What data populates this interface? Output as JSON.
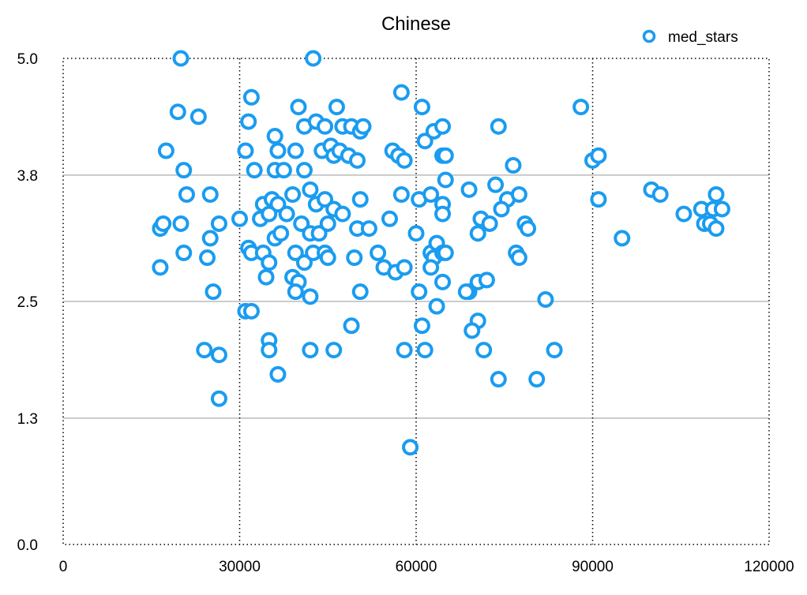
{
  "chart_data": {
    "type": "scatter",
    "title": "Chinese",
    "xlabel": "",
    "ylabel": "",
    "xlim": [
      0,
      120000
    ],
    "ylim": [
      0,
      5
    ],
    "x_ticks": [
      "0",
      "30000",
      "60000",
      "90000",
      "120000"
    ],
    "y_ticks": [
      "0.0",
      "1.3",
      "2.5",
      "3.8",
      "5.0"
    ],
    "grid": {
      "x": "dotted",
      "y": "solid"
    },
    "legend_position": "top-right",
    "colors": {
      "series": "#1a9cf0",
      "grid_y": "#bbbbbb",
      "grid_x": "#000000"
    },
    "series": [
      {
        "name": "med_stars",
        "points": [
          [
            20000,
            5.0
          ],
          [
            42500,
            5.0
          ],
          [
            19500,
            4.45
          ],
          [
            23000,
            4.4
          ],
          [
            32000,
            4.6
          ],
          [
            31500,
            4.35
          ],
          [
            40000,
            4.5
          ],
          [
            41000,
            4.3
          ],
          [
            43000,
            4.35
          ],
          [
            44500,
            4.3
          ],
          [
            46500,
            4.5
          ],
          [
            47500,
            4.3
          ],
          [
            49000,
            4.3
          ],
          [
            50500,
            4.25
          ],
          [
            51000,
            4.3
          ],
          [
            57500,
            4.65
          ],
          [
            61000,
            4.5
          ],
          [
            61500,
            4.15
          ],
          [
            63000,
            4.25
          ],
          [
            64500,
            4.3
          ],
          [
            74000,
            4.3
          ],
          [
            88000,
            4.5
          ],
          [
            17500,
            4.05
          ],
          [
            20500,
            3.85
          ],
          [
            31000,
            4.05
          ],
          [
            32500,
            3.85
          ],
          [
            36000,
            4.2
          ],
          [
            36500,
            4.05
          ],
          [
            36000,
            3.85
          ],
          [
            37500,
            3.85
          ],
          [
            39500,
            4.05
          ],
          [
            41000,
            3.85
          ],
          [
            44000,
            4.05
          ],
          [
            45500,
            4.1
          ],
          [
            46000,
            4.0
          ],
          [
            47000,
            4.05
          ],
          [
            48500,
            4.0
          ],
          [
            50000,
            3.95
          ],
          [
            56000,
            4.05
          ],
          [
            57000,
            4.0
          ],
          [
            58000,
            3.95
          ],
          [
            64500,
            4.0
          ],
          [
            65000,
            4.0
          ],
          [
            76500,
            3.9
          ],
          [
            90000,
            3.95
          ],
          [
            91000,
            4.0
          ],
          [
            21000,
            3.6
          ],
          [
            25000,
            3.6
          ],
          [
            34000,
            3.5
          ],
          [
            35500,
            3.55
          ],
          [
            36500,
            3.5
          ],
          [
            39000,
            3.6
          ],
          [
            42000,
            3.65
          ],
          [
            43000,
            3.5
          ],
          [
            44500,
            3.55
          ],
          [
            46000,
            3.45
          ],
          [
            50500,
            3.55
          ],
          [
            57500,
            3.6
          ],
          [
            60500,
            3.55
          ],
          [
            62500,
            3.6
          ],
          [
            64500,
            3.5
          ],
          [
            65000,
            3.75
          ],
          [
            69000,
            3.65
          ],
          [
            73500,
            3.7
          ],
          [
            75500,
            3.55
          ],
          [
            77500,
            3.6
          ],
          [
            91000,
            3.55
          ],
          [
            100000,
            3.65
          ],
          [
            101500,
            3.6
          ],
          [
            105500,
            3.4
          ],
          [
            108500,
            3.45
          ],
          [
            110500,
            3.45
          ],
          [
            111000,
            3.6
          ],
          [
            112000,
            3.45
          ],
          [
            16500,
            3.25
          ],
          [
            17000,
            3.3
          ],
          [
            20000,
            3.3
          ],
          [
            25000,
            3.15
          ],
          [
            26500,
            3.3
          ],
          [
            30000,
            3.35
          ],
          [
            33500,
            3.35
          ],
          [
            35000,
            3.4
          ],
          [
            36000,
            3.15
          ],
          [
            37000,
            3.2
          ],
          [
            38000,
            3.4
          ],
          [
            40500,
            3.3
          ],
          [
            42000,
            3.2
          ],
          [
            43500,
            3.2
          ],
          [
            45000,
            3.3
          ],
          [
            47500,
            3.4
          ],
          [
            50000,
            3.25
          ],
          [
            52000,
            3.25
          ],
          [
            55500,
            3.35
          ],
          [
            60000,
            3.2
          ],
          [
            64500,
            3.4
          ],
          [
            70500,
            3.2
          ],
          [
            71000,
            3.35
          ],
          [
            72500,
            3.3
          ],
          [
            74500,
            3.45
          ],
          [
            78500,
            3.3
          ],
          [
            79000,
            3.25
          ],
          [
            95000,
            3.15
          ],
          [
            109000,
            3.3
          ],
          [
            110000,
            3.3
          ],
          [
            111000,
            3.25
          ],
          [
            20500,
            3.0
          ],
          [
            24500,
            2.95
          ],
          [
            31500,
            3.05
          ],
          [
            32000,
            3.0
          ],
          [
            34000,
            3.0
          ],
          [
            35000,
            2.9
          ],
          [
            39500,
            3.0
          ],
          [
            41000,
            2.9
          ],
          [
            42500,
            3.0
          ],
          [
            44500,
            3.0
          ],
          [
            45000,
            2.95
          ],
          [
            49500,
            2.95
          ],
          [
            53500,
            3.0
          ],
          [
            54500,
            2.85
          ],
          [
            56500,
            2.8
          ],
          [
            58000,
            2.85
          ],
          [
            62500,
            3.0
          ],
          [
            63000,
            2.95
          ],
          [
            63500,
            3.1
          ],
          [
            64500,
            3.0
          ],
          [
            65000,
            3.0
          ],
          [
            77000,
            3.0
          ],
          [
            77500,
            2.95
          ],
          [
            62500,
            2.85
          ],
          [
            16500,
            2.85
          ],
          [
            34500,
            2.75
          ],
          [
            39000,
            2.75
          ],
          [
            40000,
            2.7
          ],
          [
            64500,
            2.7
          ],
          [
            69000,
            2.6
          ],
          [
            70500,
            2.7
          ],
          [
            72000,
            2.72
          ],
          [
            25500,
            2.6
          ],
          [
            39500,
            2.6
          ],
          [
            42000,
            2.55
          ],
          [
            50500,
            2.6
          ],
          [
            60500,
            2.6
          ],
          [
            68500,
            2.6
          ],
          [
            82000,
            2.52
          ],
          [
            63500,
            2.45
          ],
          [
            31000,
            2.4
          ],
          [
            32000,
            2.4
          ],
          [
            49000,
            2.25
          ],
          [
            61000,
            2.25
          ],
          [
            70500,
            2.3
          ],
          [
            69500,
            2.2
          ],
          [
            35000,
            2.1
          ],
          [
            24000,
            2.0
          ],
          [
            26500,
            1.95
          ],
          [
            35000,
            2.0
          ],
          [
            42000,
            2.0
          ],
          [
            46000,
            2.0
          ],
          [
            58000,
            2.0
          ],
          [
            61500,
            2.0
          ],
          [
            71500,
            2.0
          ],
          [
            83500,
            2.0
          ],
          [
            36500,
            1.75
          ],
          [
            74000,
            1.7
          ],
          [
            80500,
            1.7
          ],
          [
            26500,
            1.5
          ],
          [
            59000,
            1.0
          ]
        ]
      }
    ]
  }
}
